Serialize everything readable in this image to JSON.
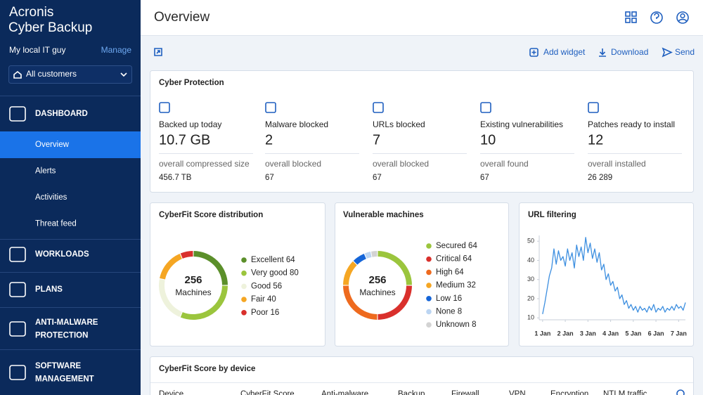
{
  "sidebar": {
    "brand": [
      "Acronis",
      "Cyber Backup"
    ],
    "account": "My local IT guy",
    "manage": "Manage",
    "customer_select": "All customers",
    "nav": [
      {
        "label": [
          "DASHBOARD"
        ],
        "items": [
          "Overview",
          "Alerts",
          "Activities",
          "Threat feed"
        ]
      },
      {
        "label": [
          "WORKLOADS"
        ]
      },
      {
        "label": [
          "PLANS"
        ]
      },
      {
        "label": [
          "ANTI-MALWARE",
          "PROTECTION"
        ]
      },
      {
        "label": [
          "SOFTWARE",
          "MANAGEMENT"
        ]
      }
    ]
  },
  "header": {
    "title": "Overview"
  },
  "toolbar": {
    "actions": [
      "Add widget",
      "Download",
      "Send"
    ]
  },
  "cyber_protection": {
    "title": "Cyber Protection",
    "stats": [
      {
        "label": "Backed up today",
        "value": "10.7 GB",
        "sub_label": "overall compressed size",
        "sub_value": "456.7 TB"
      },
      {
        "label": "Malware blocked",
        "value": 2,
        "sub_label": "overall blocked",
        "sub_value": 67
      },
      {
        "label": "URLs blocked",
        "value": 7,
        "sub_label": "overall blocked",
        "sub_value": 67
      },
      {
        "label": "Existing vulnerabilities",
        "value": 10,
        "sub_label": "overall found",
        "sub_value": 67
      },
      {
        "label": "Patches ready to install",
        "value": 12,
        "sub_label": "overall installed",
        "sub_value": "26 289"
      }
    ]
  },
  "cyberfit_distribution": {
    "type": "donut",
    "title": "CyberFit Score distribution",
    "total": 256,
    "total_label": "Machines",
    "series": [
      {
        "name": "Excellent",
        "value": 64,
        "color": "#5b8f2a"
      },
      {
        "name": "Very good",
        "value": 80,
        "color": "#9bc53d"
      },
      {
        "name": "Good",
        "value": 56,
        "color": "#eef2dc"
      },
      {
        "name": "Fair",
        "value": 40,
        "color": "#f5a623"
      },
      {
        "name": "Poor",
        "value": 16,
        "color": "#d9302c"
      }
    ]
  },
  "vulnerable_machines": {
    "type": "donut",
    "title": "Vulnerable machines",
    "total": 256,
    "total_label": "Machines",
    "series": [
      {
        "name": "Secured",
        "value": 64,
        "color": "#9bc53d"
      },
      {
        "name": "Critical",
        "value": 64,
        "color": "#d9302c"
      },
      {
        "name": "High",
        "value": 64,
        "color": "#ee6a1e"
      },
      {
        "name": "Medium",
        "value": 32,
        "color": "#f5a623"
      },
      {
        "name": "Low",
        "value": 16,
        "color": "#1565d8"
      },
      {
        "name": "None",
        "value": 8,
        "color": "#bcd5f2"
      },
      {
        "name": "Unknown",
        "value": 8,
        "color": "#d3d3d3"
      }
    ]
  },
  "url_filtering": {
    "type": "line",
    "title": "URL filtering",
    "color": "#3d8fe0",
    "x": [
      1.0,
      1.1,
      1.2,
      1.3,
      1.4,
      1.5,
      1.6,
      1.7,
      1.8,
      1.9,
      2.0,
      2.1,
      2.2,
      2.3,
      2.4,
      2.5,
      2.6,
      2.7,
      2.8,
      2.9,
      3.0,
      3.1,
      3.2,
      3.3,
      3.4,
      3.5,
      3.6,
      3.7,
      3.8,
      3.9,
      4.0,
      4.1,
      4.2,
      4.3,
      4.4,
      4.5,
      4.6,
      4.7,
      4.8,
      4.9,
      5.0,
      5.1,
      5.2,
      5.3,
      5.4,
      5.5,
      5.6,
      5.7,
      5.8,
      5.9,
      6.0,
      6.1,
      6.2,
      6.3,
      6.4,
      6.5,
      6.6,
      6.7,
      6.8,
      6.9,
      7.0,
      7.1,
      7.2,
      7.3
    ],
    "values": [
      12,
      18,
      25,
      32,
      36,
      46,
      38,
      45,
      40,
      42,
      37,
      46,
      40,
      44,
      36,
      48,
      42,
      47,
      40,
      52,
      44,
      49,
      41,
      46,
      39,
      44,
      35,
      38,
      30,
      33,
      27,
      29,
      24,
      26,
      20,
      22,
      17,
      19,
      15,
      17,
      14,
      16,
      13,
      16,
      14,
      15,
      13,
      16,
      14,
      17,
      13,
      15,
      14,
      16,
      13,
      15,
      14,
      16,
      14,
      17,
      15,
      16,
      14,
      18
    ],
    "xlim": [
      0.85,
      7.3
    ],
    "ylim": [
      9,
      53
    ],
    "xticks": [
      {
        "value": 1,
        "label": "1 Jan"
      },
      {
        "value": 2,
        "label": "2 Jan"
      },
      {
        "value": 3,
        "label": "3 Jan"
      },
      {
        "value": 4,
        "label": "4 Jan"
      },
      {
        "value": 5,
        "label": "5 Jan"
      },
      {
        "value": 6,
        "label": "6 Jan"
      },
      {
        "value": 7,
        "label": "7 Jan"
      }
    ],
    "yticks": [
      10,
      20,
      30,
      40,
      50
    ]
  },
  "cyberfit_by_device": {
    "title": "CyberFit Score by device",
    "columns": [
      "Device",
      "CyberFit Score",
      "Anti-malware",
      "Backup",
      "Firewall",
      "VPN",
      "Encryption",
      "NTLM traffic"
    ]
  }
}
